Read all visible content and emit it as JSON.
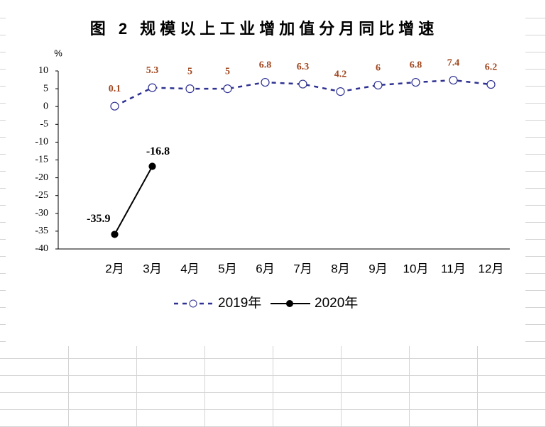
{
  "chart_data": {
    "type": "line",
    "title": "图 2 规模以上工业增加值分月同比增速",
    "y_unit": "%",
    "categories": [
      null,
      "2月",
      "3月",
      "4月",
      "5月",
      "6月",
      "7月",
      "8月",
      "9月",
      "10月",
      "11月",
      "12月"
    ],
    "series": [
      {
        "name": "2019年",
        "color": "#2e3192",
        "dashed": true,
        "marker": "open-circle",
        "label_color": "#a0461e",
        "values": [
          null,
          0.1,
          5.3,
          5,
          5,
          6.8,
          6.3,
          4.2,
          6,
          6.8,
          7.4,
          6.2
        ]
      },
      {
        "name": "2020年",
        "color": "#000000",
        "dashed": false,
        "marker": "filled-circle",
        "label_color": "#000000",
        "values": [
          null,
          -35.9,
          -16.8,
          null,
          null,
          null,
          null,
          null,
          null,
          null,
          null,
          null
        ]
      }
    ],
    "ylim": [
      -40,
      10
    ],
    "yticks": [
      -40,
      -35,
      -30,
      -25,
      -20,
      -15,
      -10,
      -5,
      0,
      5,
      10
    ],
    "legend": "bottom"
  }
}
